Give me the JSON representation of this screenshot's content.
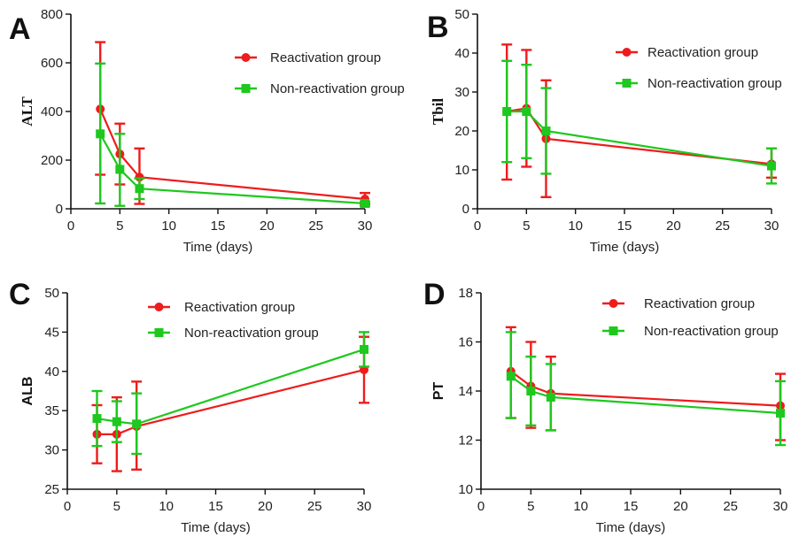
{
  "chart_data": [
    {
      "type": "line",
      "panel": "A",
      "ylabel": "ALT",
      "xlabel": "Time (days)",
      "xlim": [
        0,
        30
      ],
      "ylim": [
        0,
        800
      ],
      "xticks": [
        0,
        5,
        10,
        15,
        20,
        25,
        30
      ],
      "yticks": [
        0,
        200,
        400,
        600,
        800
      ],
      "legend_position": "top-right",
      "series": [
        {
          "name": "Reactivation group",
          "color": "#ee1c1c",
          "marker": "circle",
          "x": [
            3,
            5,
            7,
            30
          ],
          "y": [
            410,
            225,
            130,
            40
          ],
          "err_low": [
            140,
            100,
            20,
            20
          ],
          "err_high": [
            685,
            350,
            248,
            65
          ]
        },
        {
          "name": "Non-reactivation group",
          "color": "#1ec81e",
          "marker": "square",
          "x": [
            3,
            5,
            7,
            30
          ],
          "y": [
            308,
            162,
            83,
            22
          ],
          "err_low": [
            22,
            12,
            40,
            10
          ],
          "err_high": [
            597,
            308,
            125,
            30
          ]
        }
      ]
    },
    {
      "type": "line",
      "panel": "B",
      "ylabel": "Tbil",
      "xlabel": "Time (days)",
      "xlim": [
        0,
        30
      ],
      "ylim": [
        0,
        50
      ],
      "xticks": [
        0,
        5,
        10,
        15,
        20,
        25,
        30
      ],
      "yticks": [
        0,
        10,
        20,
        30,
        40,
        50
      ],
      "legend_position": "top-right",
      "series": [
        {
          "name": "Reactivation group",
          "color": "#ee1c1c",
          "marker": "circle",
          "x": [
            3,
            5,
            7,
            30
          ],
          "y": [
            25,
            25.8,
            18,
            11.5
          ],
          "err_low": [
            7.5,
            10.8,
            3,
            8
          ],
          "err_high": [
            42.2,
            40.8,
            33,
            15.5
          ]
        },
        {
          "name": "Non-reactivation group",
          "color": "#1ec81e",
          "marker": "square",
          "x": [
            3,
            5,
            7,
            30
          ],
          "y": [
            25,
            25,
            20,
            11
          ],
          "err_low": [
            12,
            13,
            9,
            6.5
          ],
          "err_high": [
            38,
            37,
            31,
            15.5
          ]
        }
      ]
    },
    {
      "type": "line",
      "panel": "C",
      "ylabel": "ALB",
      "xlabel": "Time (days)",
      "xlim": [
        0,
        30
      ],
      "ylim": [
        25,
        50
      ],
      "xticks": [
        0,
        5,
        10,
        15,
        20,
        25,
        30
      ],
      "yticks": [
        25,
        30,
        35,
        40,
        45,
        50
      ],
      "legend_position": "top-right",
      "series": [
        {
          "name": "Reactivation group",
          "color": "#ee1c1c",
          "marker": "circle",
          "x": [
            3,
            5,
            7,
            30
          ],
          "y": [
            32,
            32,
            33,
            40.2
          ],
          "err_low": [
            28.3,
            27.3,
            27.5,
            36
          ],
          "err_high": [
            35.7,
            36.7,
            38.7,
            44.4
          ]
        },
        {
          "name": "Non-reactivation group",
          "color": "#1ec81e",
          "marker": "square",
          "x": [
            3,
            5,
            7,
            30
          ],
          "y": [
            34,
            33.6,
            33.3,
            42.8
          ],
          "err_low": [
            30.5,
            31,
            29.5,
            40.6
          ],
          "err_high": [
            37.5,
            36.2,
            37.2,
            45
          ]
        }
      ]
    },
    {
      "type": "line",
      "panel": "D",
      "ylabel": "PT",
      "xlabel": "Time (days)",
      "xlim": [
        0,
        30
      ],
      "ylim": [
        10,
        18
      ],
      "xticks": [
        0,
        5,
        10,
        15,
        20,
        25,
        30
      ],
      "yticks": [
        10,
        12,
        14,
        16,
        18
      ],
      "legend_position": "top-right",
      "series": [
        {
          "name": "Reactivation group",
          "color": "#ee1c1c",
          "marker": "circle",
          "x": [
            3,
            5,
            7,
            30
          ],
          "y": [
            14.8,
            14.2,
            13.9,
            13.4
          ],
          "err_low": [
            12.9,
            12.5,
            12.4,
            12
          ],
          "err_high": [
            16.6,
            16,
            15.4,
            14.7
          ]
        },
        {
          "name": "Non-reactivation group",
          "color": "#1ec81e",
          "marker": "square",
          "x": [
            3,
            5,
            7,
            30
          ],
          "y": [
            14.6,
            14,
            13.75,
            13.1
          ],
          "err_low": [
            12.9,
            12.6,
            12.4,
            11.8
          ],
          "err_high": [
            16.4,
            15.4,
            15.1,
            14.4
          ]
        }
      ]
    }
  ]
}
